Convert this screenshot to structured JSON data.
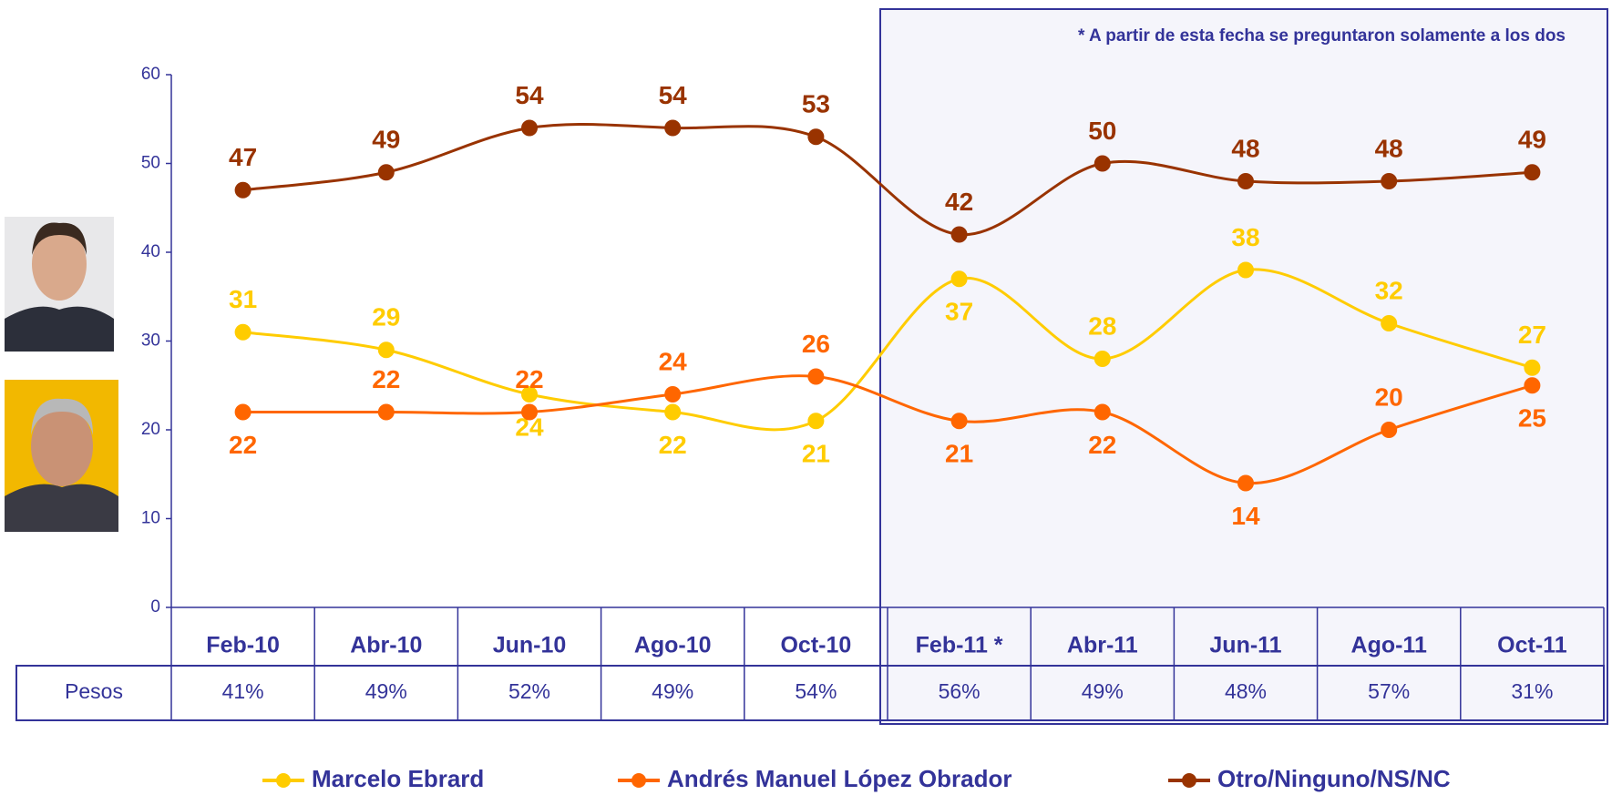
{
  "chart_data": {
    "type": "line",
    "annotation": "* A partir de esta fecha se preguntaron solamente a los dos",
    "categories": [
      "Feb-10",
      "Abr-10",
      "Jun-10",
      "Ago-10",
      "Oct-10",
      "Feb-11 *",
      "Abr-11",
      "Jun-11",
      "Ago-11",
      "Oct-11"
    ],
    "series": [
      {
        "name": "Marcelo Ebrard",
        "color": "#FFCC00",
        "values": [
          31,
          29,
          24,
          22,
          21,
          37,
          28,
          38,
          32,
          27
        ]
      },
      {
        "name": "Andrés Manuel López Obrador",
        "color": "#FF6600",
        "values": [
          22,
          22,
          22,
          24,
          26,
          21,
          22,
          14,
          20,
          25
        ]
      },
      {
        "name": "Otro/Ninguno/NS/NC",
        "color": "#993300",
        "values": [
          47,
          49,
          54,
          54,
          53,
          42,
          50,
          48,
          48,
          49
        ]
      }
    ],
    "ylim": [
      0,
      60
    ],
    "yticks": [
      0,
      10,
      20,
      30,
      40,
      50,
      60
    ],
    "table": {
      "row_label": "Pesos",
      "cells": [
        "41%",
        "49%",
        "52%",
        "49%",
        "54%",
        "56%",
        "49%",
        "48%",
        "57%",
        "31%"
      ]
    }
  }
}
